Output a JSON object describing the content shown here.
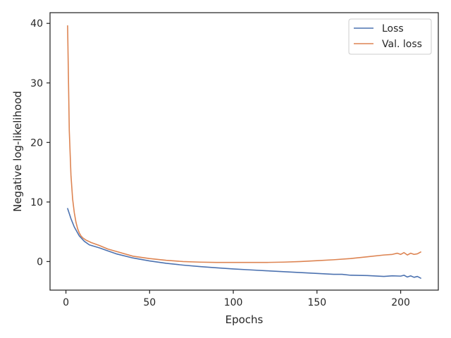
{
  "chart_data": {
    "type": "line",
    "title": "",
    "xlabel": "Epochs",
    "ylabel": "Negative log-likelihood",
    "xlim": [
      -9.5,
      222.5
    ],
    "ylim": [
      -4.8,
      41.8
    ],
    "xticks": [
      0,
      50,
      100,
      150,
      200
    ],
    "yticks": [
      0,
      10,
      20,
      30,
      40
    ],
    "grid": false,
    "legend_position": "top-right",
    "series": [
      {
        "name": "Loss",
        "color": "#4c72b0",
        "x": [
          1,
          3,
          5,
          8,
          11,
          14,
          20,
          25,
          30,
          40,
          50,
          60,
          70,
          80,
          90,
          100,
          110,
          120,
          130,
          140,
          150,
          160,
          165,
          170,
          180,
          190,
          195,
          200,
          202,
          204,
          206,
          208,
          210,
          212
        ],
        "y": [
          8.9,
          7.2,
          5.8,
          4.3,
          3.4,
          2.8,
          2.3,
          1.8,
          1.3,
          0.6,
          0.1,
          -0.3,
          -0.6,
          -0.85,
          -1.05,
          -1.25,
          -1.4,
          -1.55,
          -1.7,
          -1.85,
          -2.0,
          -2.15,
          -2.15,
          -2.3,
          -2.35,
          -2.5,
          -2.4,
          -2.45,
          -2.3,
          -2.6,
          -2.4,
          -2.65,
          -2.5,
          -2.8
        ]
      },
      {
        "name": "Val. loss",
        "color": "#dd8452",
        "x": [
          1,
          2,
          3,
          4,
          5,
          6,
          7,
          8,
          9,
          10,
          12,
          15,
          20,
          25,
          30,
          40,
          50,
          60,
          70,
          80,
          90,
          100,
          110,
          120,
          130,
          140,
          150,
          160,
          170,
          180,
          190,
          195,
          198,
          200,
          202,
          204,
          206,
          208,
          210,
          212
        ],
        "y": [
          39.6,
          22.0,
          14.5,
          10.5,
          8.2,
          6.6,
          5.5,
          4.8,
          4.3,
          4.0,
          3.6,
          3.2,
          2.7,
          2.1,
          1.7,
          0.9,
          0.5,
          0.2,
          0.0,
          -0.1,
          -0.15,
          -0.15,
          -0.15,
          -0.15,
          -0.1,
          0.0,
          0.15,
          0.3,
          0.5,
          0.8,
          1.1,
          1.2,
          1.4,
          1.2,
          1.5,
          1.1,
          1.4,
          1.2,
          1.3,
          1.6
        ]
      }
    ]
  }
}
